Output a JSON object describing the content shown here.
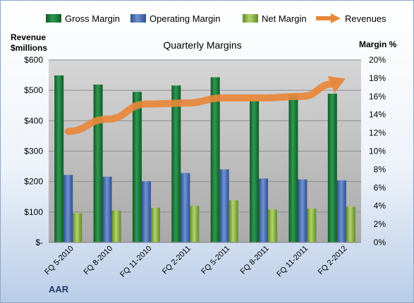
{
  "chart_data": {
    "type": "bar",
    "title": "Quarterly Margins",
    "left_axis_title": [
      "Revenue",
      "$millions"
    ],
    "right_axis_title": "Margin %",
    "categories": [
      "FQ 5-2010",
      "FQ 8-2010",
      "FQ 11-2010",
      "FQ 2-2011",
      "FQ 5-2011",
      "FQ 8-2011",
      "FQ 11-2011",
      "FQ 2-2012"
    ],
    "left_ticks": [
      "$-",
      "$100",
      "$200",
      "$300",
      "$400",
      "$500",
      "$600"
    ],
    "right_ticks": [
      "0%",
      "2%",
      "4%",
      "6%",
      "8%",
      "10%",
      "12%",
      "14%",
      "16%",
      "18%",
      "20%"
    ],
    "ylim_left": [
      0,
      600
    ],
    "ylim_right": [
      0,
      20
    ],
    "series": [
      {
        "name": "Gross Margin",
        "axis": "right",
        "kind": "bar",
        "color": "#1e7a3c",
        "values": [
          18.3,
          17.3,
          16.5,
          17.2,
          18.1,
          15.6,
          16.2,
          16.3
        ]
      },
      {
        "name": "Operating Margin",
        "axis": "right",
        "kind": "bar",
        "color": "#4a6fb5",
        "values": [
          7.4,
          7.2,
          6.7,
          7.6,
          8.0,
          7.0,
          6.9,
          6.8
        ]
      },
      {
        "name": "Net Margin",
        "axis": "right",
        "kind": "bar",
        "color": "#8fb84a",
        "values": [
          3.2,
          3.5,
          3.8,
          4.0,
          4.6,
          3.6,
          3.7,
          3.9
        ]
      },
      {
        "name": "Revenues",
        "axis": "left",
        "kind": "arrow-line",
        "color": "#e8873a",
        "values": [
          365,
          405,
          455,
          458,
          475,
          475,
          480,
          533
        ]
      }
    ],
    "grid": true,
    "legend_position": "top"
  },
  "brand": "AAR"
}
